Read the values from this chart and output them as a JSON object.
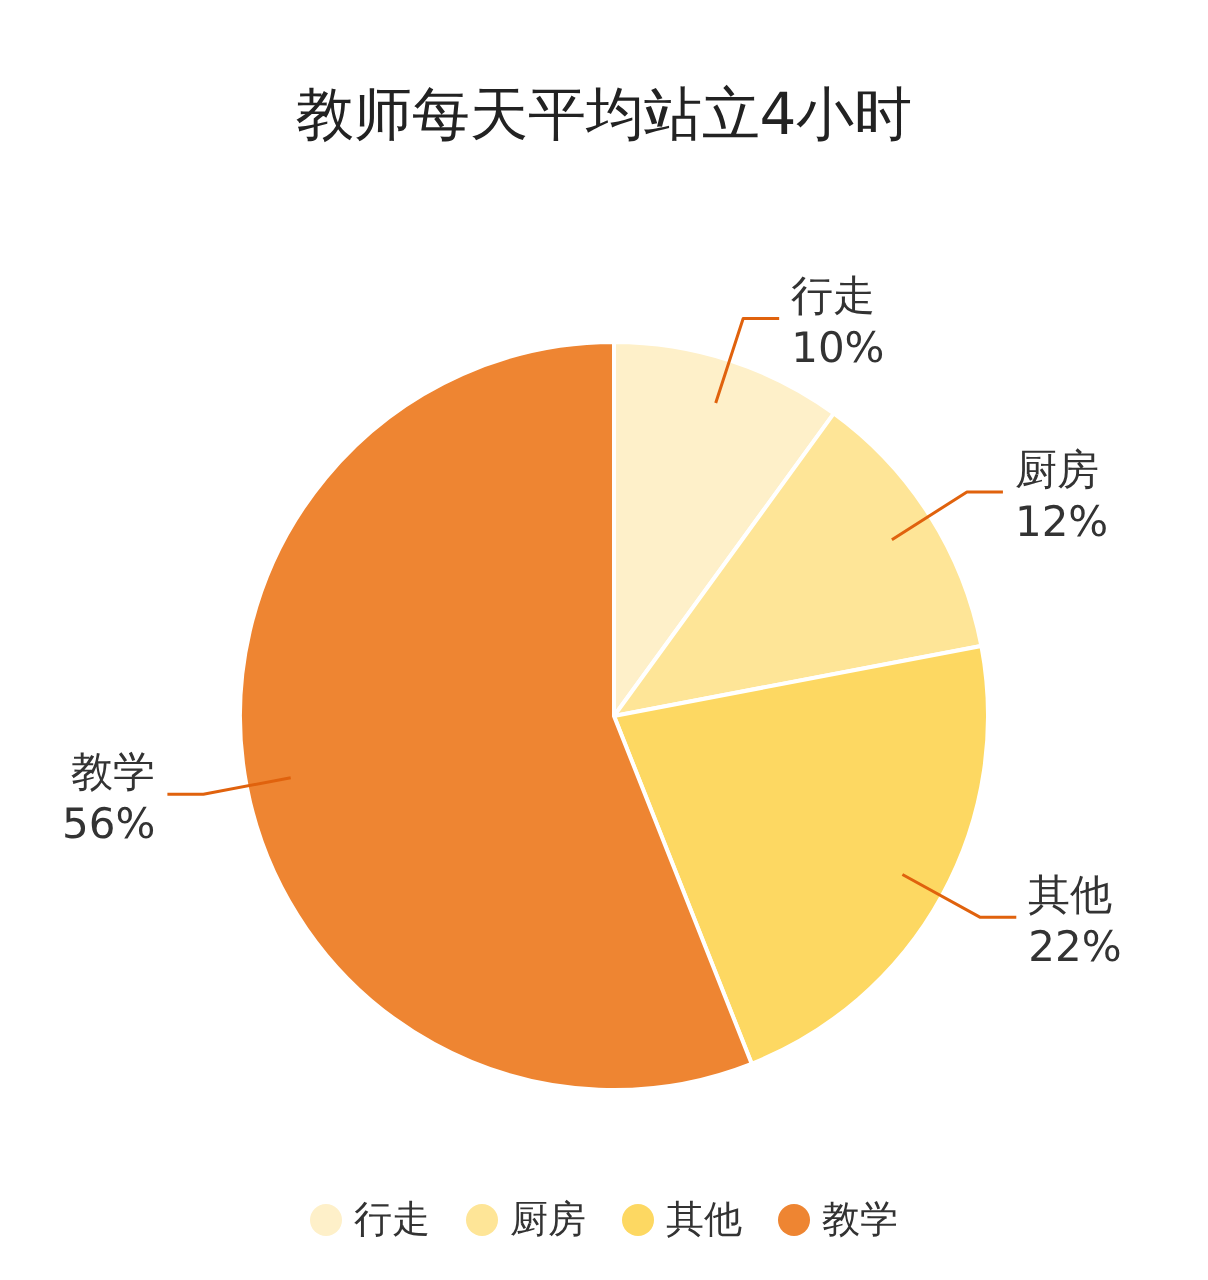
{
  "chart_data": {
    "type": "pie",
    "title": "教师每天平均站立4小时",
    "categories": [
      "行走",
      "厨房",
      "其他",
      "教学"
    ],
    "values": [
      10,
      12,
      22,
      56
    ],
    "value_labels": [
      "10%",
      "12%",
      "22%",
      "56%"
    ],
    "colors": [
      "#fef0c9",
      "#fee597",
      "#fdd862",
      "#ee8532"
    ],
    "legend": "bottom"
  }
}
